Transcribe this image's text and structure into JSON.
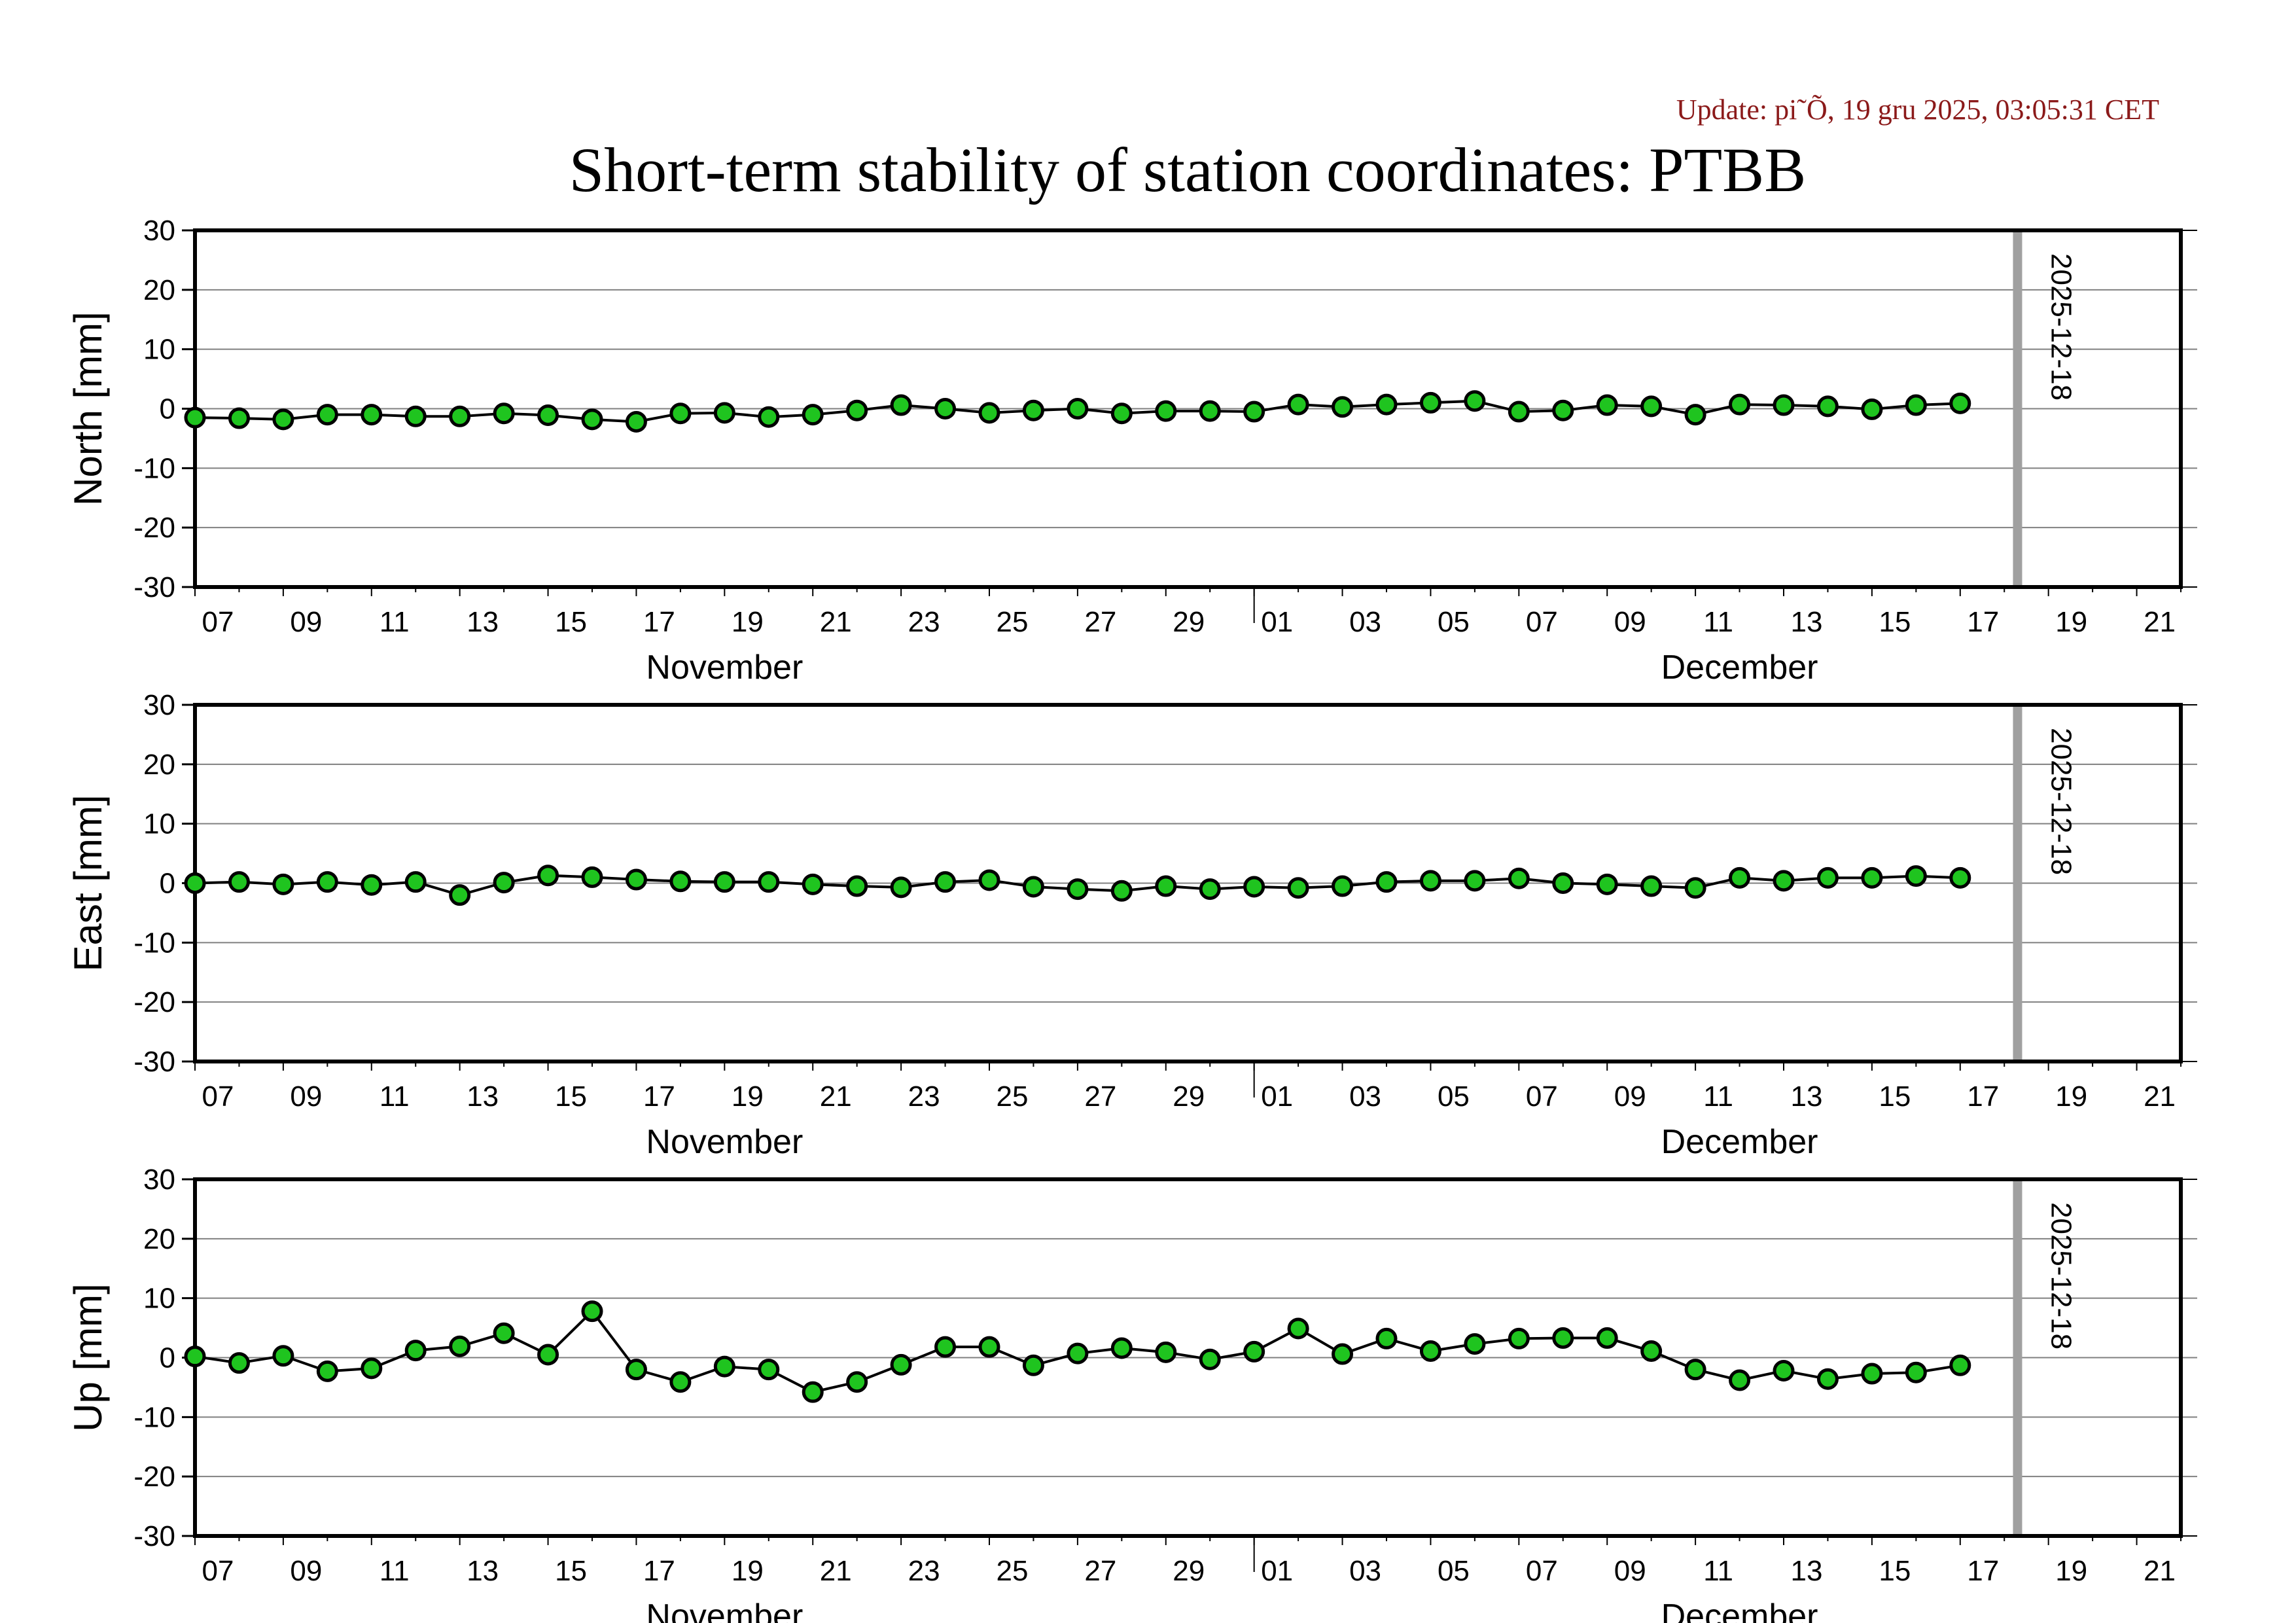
{
  "header": {
    "update_text": "Update: pi˜Õ, 19 gru 2025, 03:05:31 CET",
    "title": "Short-term stability of station coordinates: PTBB"
  },
  "colors": {
    "point_fill": "#1fc41f",
    "point_stroke": "#000000",
    "line": "#000000",
    "grid": "#808080",
    "marker_line": "#a0a0a0",
    "update_text": "#8b1a1a"
  },
  "chart_data": [
    {
      "type": "line",
      "component": "north",
      "ylabel": "North [mm]",
      "ylim": [
        -30,
        30
      ],
      "yticks": [
        "30",
        "20",
        "10",
        "0",
        "-10",
        "-20",
        "-30"
      ],
      "xlim_days": [
        0,
        45
      ],
      "x_tick_labels": [
        "07",
        "09",
        "11",
        "13",
        "15",
        "17",
        "19",
        "21",
        "23",
        "25",
        "27",
        "29",
        "01",
        "03",
        "05",
        "07",
        "09",
        "11",
        "13",
        "15",
        "17",
        "19",
        "21"
      ],
      "months": [
        "November",
        "December"
      ],
      "marker_label": "2025-12-18",
      "x_days": [
        0,
        1,
        2,
        3,
        4,
        5,
        6,
        7,
        8,
        9,
        10,
        11,
        12,
        13,
        14,
        15,
        16,
        17,
        18,
        19,
        20,
        21,
        22,
        23,
        24,
        25,
        26,
        27,
        28,
        29,
        30,
        31,
        32,
        33,
        34,
        35,
        36,
        37,
        38,
        39,
        40
      ],
      "values": [
        -1.5,
        -1.6,
        -1.8,
        -1.0,
        -1.0,
        -1.3,
        -1.3,
        -0.8,
        -1.1,
        -1.8,
        -2.2,
        -0.8,
        -0.7,
        -1.4,
        -1.0,
        -0.3,
        0.6,
        0.0,
        -0.7,
        -0.3,
        0.0,
        -0.8,
        -0.4,
        -0.4,
        -0.5,
        0.7,
        0.3,
        0.7,
        1.0,
        1.3,
        -0.5,
        -0.3,
        0.6,
        0.4,
        -1.0,
        0.7,
        0.6,
        0.4,
        -0.1,
        0.6,
        0.9
      ]
    },
    {
      "type": "line",
      "component": "east",
      "ylabel": "East [mm]",
      "ylim": [
        -30,
        30
      ],
      "yticks": [
        "30",
        "20",
        "10",
        "0",
        "-10",
        "-20",
        "-30"
      ],
      "xlim_days": [
        0,
        45
      ],
      "x_tick_labels": [
        "07",
        "09",
        "11",
        "13",
        "15",
        "17",
        "19",
        "21",
        "23",
        "25",
        "27",
        "29",
        "01",
        "03",
        "05",
        "07",
        "09",
        "11",
        "13",
        "15",
        "17",
        "19",
        "21"
      ],
      "months": [
        "November",
        "December"
      ],
      "marker_label": "2025-12-18",
      "x_days": [
        0,
        1,
        2,
        3,
        4,
        5,
        6,
        7,
        8,
        9,
        10,
        11,
        12,
        13,
        14,
        15,
        16,
        17,
        18,
        19,
        20,
        21,
        22,
        23,
        24,
        25,
        26,
        27,
        28,
        29,
        30,
        31,
        32,
        33,
        34,
        35,
        36,
        37,
        38,
        39,
        40
      ],
      "values": [
        0.0,
        0.2,
        -0.2,
        0.2,
        -0.3,
        0.2,
        -2.0,
        0.1,
        1.3,
        1.0,
        0.6,
        0.3,
        0.2,
        0.2,
        -0.2,
        -0.5,
        -0.7,
        0.2,
        0.5,
        -0.6,
        -1.0,
        -1.3,
        -0.5,
        -1.0,
        -0.6,
        -0.8,
        -0.5,
        0.2,
        0.4,
        0.4,
        0.8,
        0.0,
        -0.2,
        -0.5,
        -0.8,
        0.9,
        0.4,
        0.9,
        0.9,
        1.2,
        0.9
      ]
    },
    {
      "type": "line",
      "component": "up",
      "ylabel": "Up [mm]",
      "ylim": [
        -30,
        30
      ],
      "yticks": [
        "30",
        "20",
        "10",
        "0",
        "-10",
        "-20",
        "-30"
      ],
      "xlim_days": [
        0,
        45
      ],
      "x_tick_labels": [
        "07",
        "09",
        "11",
        "13",
        "15",
        "17",
        "19",
        "21",
        "23",
        "25",
        "27",
        "29",
        "01",
        "03",
        "05",
        "07",
        "09",
        "11",
        "13",
        "15",
        "17",
        "19",
        "21"
      ],
      "months": [
        "November",
        "December"
      ],
      "marker_label": "2025-12-18",
      "x_days": [
        0,
        1,
        2,
        3,
        4,
        5,
        6,
        7,
        8,
        9,
        10,
        11,
        12,
        13,
        14,
        15,
        16,
        17,
        18,
        19,
        20,
        21,
        22,
        23,
        24,
        25,
        26,
        27,
        28,
        29,
        30,
        31,
        32,
        33,
        34,
        35,
        36,
        37,
        38,
        39,
        40
      ],
      "values": [
        0.2,
        -0.9,
        0.3,
        -2.3,
        -1.8,
        1.2,
        1.9,
        4.1,
        0.5,
        7.8,
        -2.0,
        -4.1,
        -1.5,
        -2.0,
        -5.8,
        -4.1,
        -1.2,
        1.8,
        1.8,
        -1.3,
        0.7,
        1.6,
        0.9,
        -0.3,
        1.0,
        4.9,
        0.6,
        3.2,
        1.1,
        2.3,
        3.2,
        3.3,
        3.3,
        1.1,
        -2.0,
        -3.8,
        -2.2,
        -3.6,
        -2.7,
        -2.5,
        -1.3
      ]
    }
  ]
}
